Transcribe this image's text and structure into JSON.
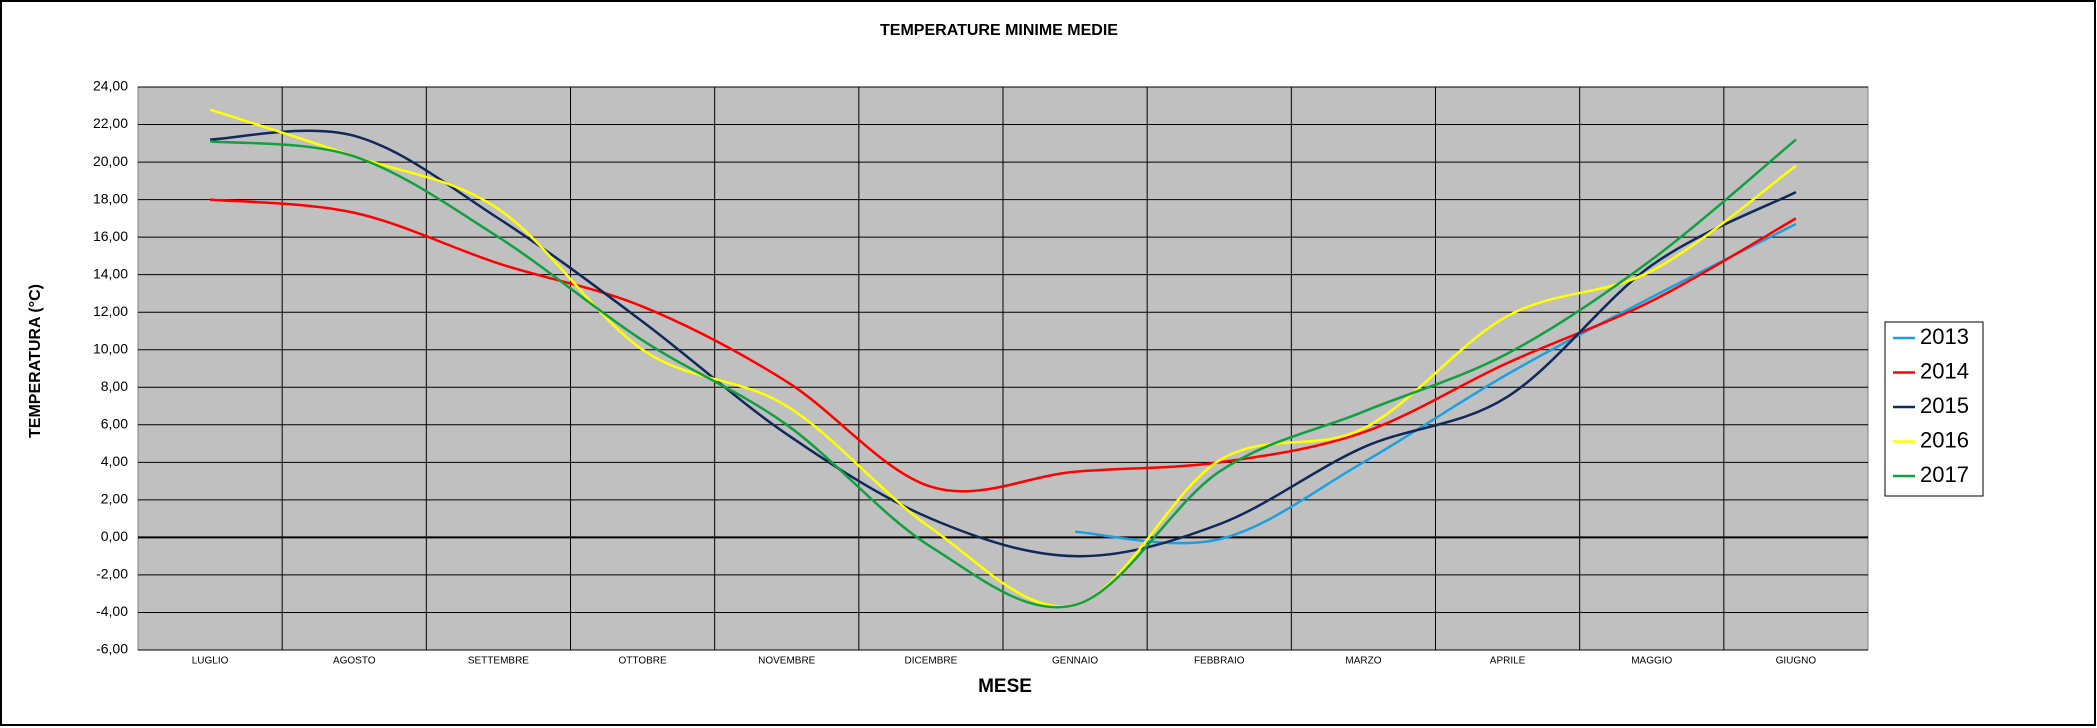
{
  "chart_data": {
    "type": "line",
    "title": "TEMPERATURE  MINIME  MEDIE",
    "x_label": "MESE",
    "y_label": "TEMPERATURA  (°C)",
    "categories": [
      "LUGLIO",
      "AGOSTO",
      "SETTEMBRE",
      "OTTOBRE",
      "NOVEMBRE",
      "DICEMBRE",
      "GENNAIO",
      "FEBBRAIO",
      "MARZO",
      "APRILE",
      "MAGGIO",
      "GIUGNO"
    ],
    "series": [
      {
        "name": "2013",
        "color": "#1ea0e0",
        "values": [
          null,
          null,
          null,
          null,
          null,
          null,
          0.3,
          -0.1,
          4.0,
          8.7,
          12.8,
          16.7
        ]
      },
      {
        "name": "2014",
        "color": "#ff0000",
        "values": [
          18.0,
          17.3,
          14.6,
          12.3,
          8.3,
          2.7,
          3.5,
          4.0,
          5.6,
          9.3,
          12.6,
          17.0
        ]
      },
      {
        "name": "2015",
        "color": "#10285a",
        "values": [
          21.2,
          21.4,
          17.0,
          11.5,
          5.5,
          1.0,
          -1.0,
          0.7,
          4.8,
          7.5,
          14.5,
          18.4
        ]
      },
      {
        "name": "2016",
        "color": "#ffff00",
        "values": [
          22.8,
          20.3,
          17.5,
          10.0,
          7.0,
          0.5,
          -3.6,
          4.1,
          5.8,
          11.8,
          14.2,
          19.8
        ]
      },
      {
        "name": "2017",
        "color": "#10a040",
        "values": [
          21.1,
          20.3,
          16.0,
          10.5,
          6.0,
          -0.5,
          -3.6,
          3.5,
          6.7,
          9.8,
          14.8,
          21.2
        ]
      }
    ],
    "ylim": [
      -6,
      24
    ],
    "yticks": [
      {
        "value": -6,
        "label": "-6,00"
      },
      {
        "value": -4,
        "label": "-4,00"
      },
      {
        "value": -2,
        "label": "-2,00"
      },
      {
        "value": 0,
        "label": "0,00"
      },
      {
        "value": 2,
        "label": "2,00"
      },
      {
        "value": 4,
        "label": "4,00"
      },
      {
        "value": 6,
        "label": "6,00"
      },
      {
        "value": 8,
        "label": "8,00"
      },
      {
        "value": 10,
        "label": "10,00"
      },
      {
        "value": 12,
        "label": "12,00"
      },
      {
        "value": 14,
        "label": "14,00"
      },
      {
        "value": 16,
        "label": "16,00"
      },
      {
        "value": 18,
        "label": "18,00"
      },
      {
        "value": 20,
        "label": "20,00"
      },
      {
        "value": 22,
        "label": "22,00"
      },
      {
        "value": 24,
        "label": "24,00"
      }
    ],
    "grid": true,
    "legend": "right"
  }
}
